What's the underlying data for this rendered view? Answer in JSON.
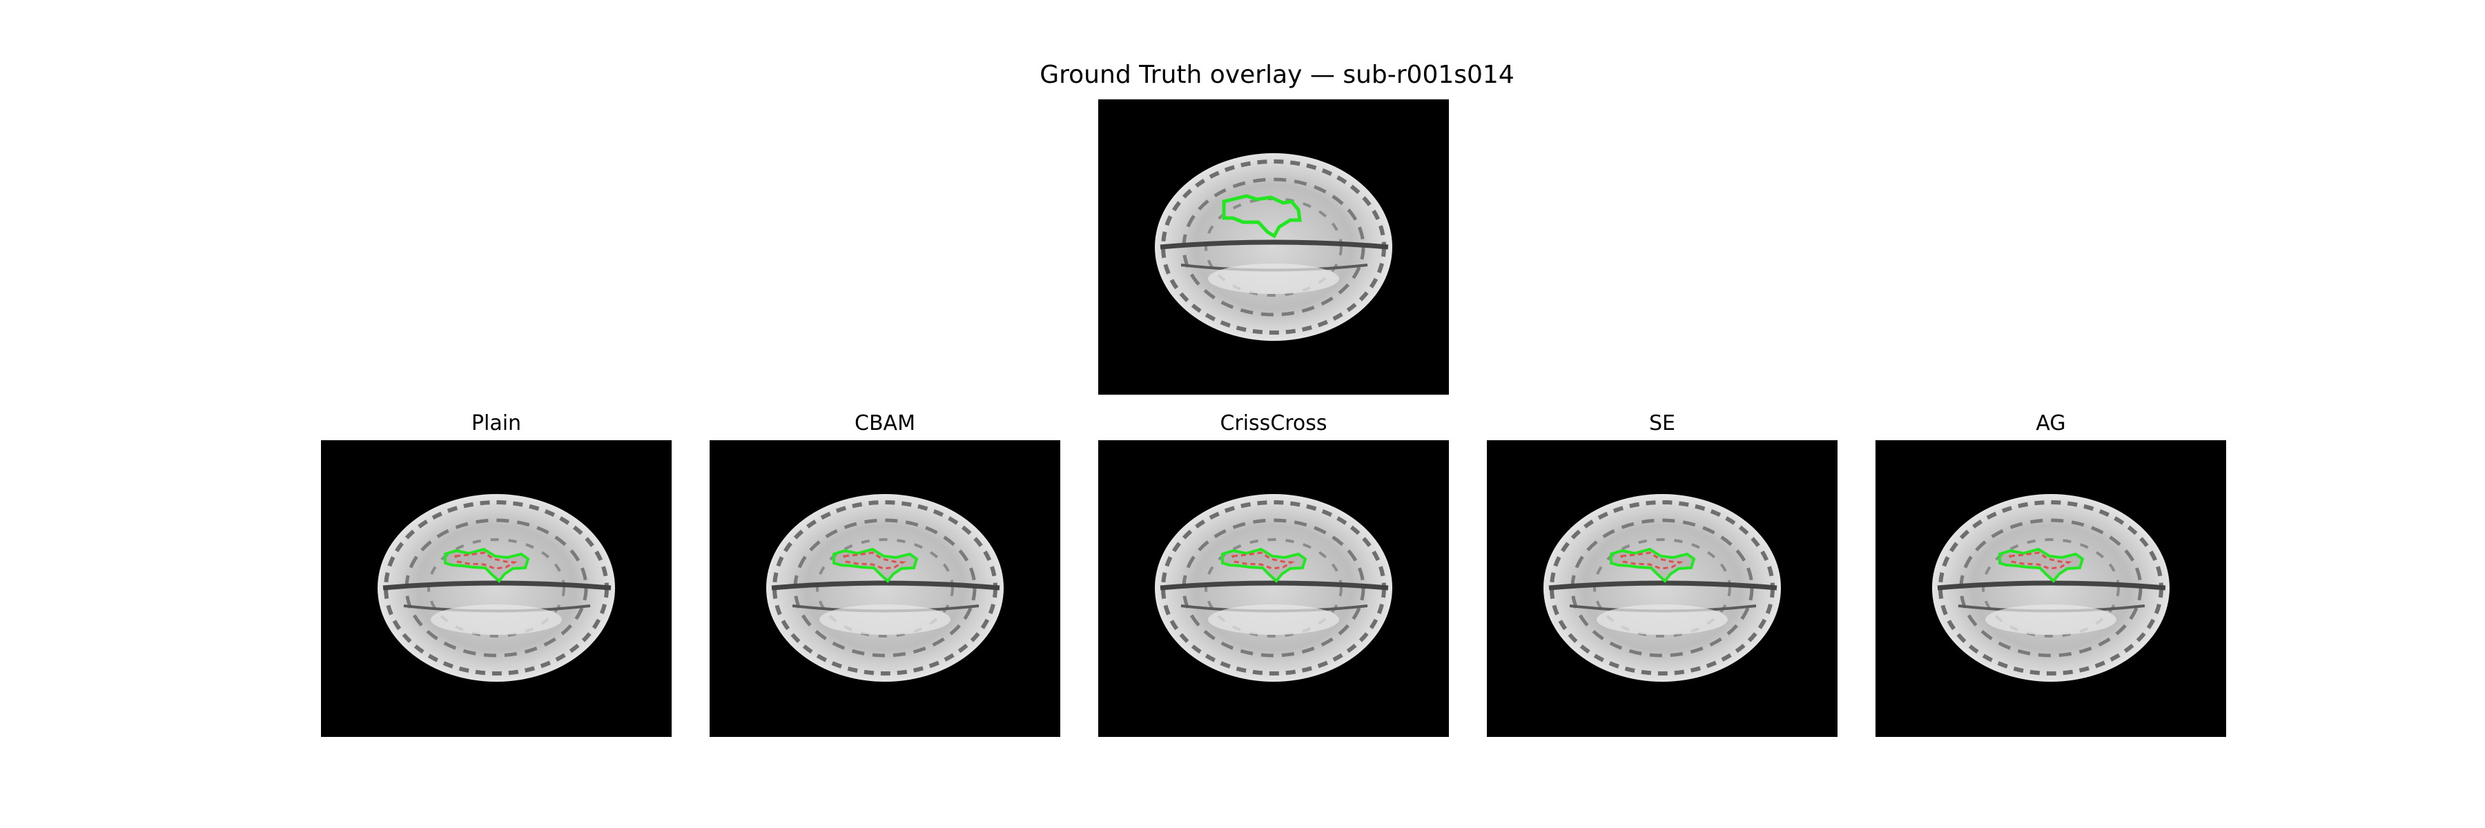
{
  "figure": {
    "title": "Ground Truth overlay — sub-r001s014"
  },
  "panels": [
    {
      "title": "Plain",
      "overlay_colors": {
        "ground_truth": "#22e622",
        "prediction": "#e0504a"
      }
    },
    {
      "title": "CBAM",
      "overlay_colors": {
        "ground_truth": "#22e622",
        "prediction": "#e0504a"
      }
    },
    {
      "title": "CrissCross",
      "overlay_colors": {
        "ground_truth": "#22e622",
        "prediction": "#e0504a"
      }
    },
    {
      "title": "SE",
      "overlay_colors": {
        "ground_truth": "#22e622",
        "prediction": "#e0504a"
      }
    },
    {
      "title": "AG",
      "overlay_colors": {
        "ground_truth": "#22e622",
        "prediction": "#e0504a"
      }
    }
  ]
}
